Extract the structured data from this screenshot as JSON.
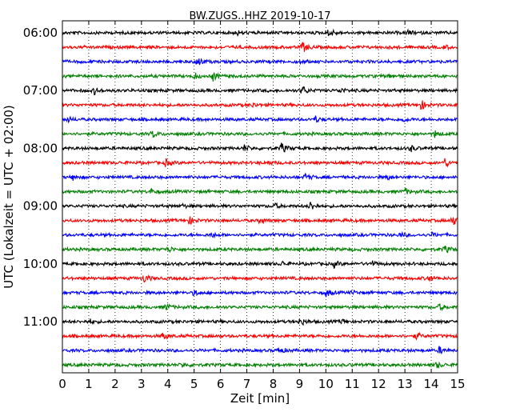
{
  "chart_data": {
    "type": "line",
    "title": "BW.ZUGS..HHZ 2019-10-17",
    "xlabel": "Zeit  [min]",
    "ylabel": "UTC (Lokalzeit = UTC + 02:00)",
    "xlim": [
      0,
      15
    ],
    "x_ticks": [
      0,
      1,
      2,
      3,
      4,
      5,
      6,
      7,
      8,
      9,
      10,
      11,
      12,
      13,
      14,
      15
    ],
    "y_ticks": [
      "06:00",
      "07:00",
      "08:00",
      "09:00",
      "10:00",
      "11:00"
    ],
    "grid": {
      "x": true,
      "y": false
    },
    "trace_colors": [
      "#000000",
      "#ff0000",
      "#0000ff",
      "#008000"
    ],
    "series": [
      {
        "start": "06:00",
        "events": [
          [
            6.6,
            0.4
          ],
          [
            10.1,
            0.9
          ],
          [
            13.1,
            0.4
          ]
        ]
      },
      {
        "start": "06:15",
        "events": [
          [
            9.1,
            1.0
          ],
          [
            14.5,
            0.3
          ]
        ]
      },
      {
        "start": "06:30",
        "events": [
          [
            5.1,
            0.9
          ],
          [
            9.0,
            0.3
          ]
        ]
      },
      {
        "start": "06:45",
        "events": [
          [
            5.0,
            0.5
          ],
          [
            5.7,
            0.8
          ],
          [
            12.4,
            0.4
          ]
        ]
      },
      {
        "start": "07:00",
        "events": [
          [
            1.2,
            0.6
          ],
          [
            9.1,
            0.8
          ],
          [
            10.5,
            0.5
          ]
        ]
      },
      {
        "start": "07:15",
        "events": [
          [
            13.6,
            0.9
          ],
          [
            7.2,
            0.3
          ]
        ]
      },
      {
        "start": "07:30",
        "events": [
          [
            0.2,
            0.5
          ],
          [
            9.6,
            0.5
          ],
          [
            12.9,
            0.4
          ]
        ]
      },
      {
        "start": "07:45",
        "events": [
          [
            3.4,
            0.6
          ],
          [
            14.1,
            0.6
          ]
        ]
      },
      {
        "start": "08:00",
        "events": [
          [
            6.9,
            0.5
          ],
          [
            8.3,
            0.9
          ],
          [
            13.2,
            0.5
          ]
        ]
      },
      {
        "start": "08:15",
        "events": [
          [
            3.9,
            0.6
          ],
          [
            14.5,
            0.8
          ],
          [
            7.8,
            0.3
          ]
        ]
      },
      {
        "start": "08:30",
        "events": [
          [
            0.4,
            0.4
          ],
          [
            9.2,
            0.6
          ],
          [
            12.3,
            0.4
          ]
        ]
      },
      {
        "start": "08:45",
        "events": [
          [
            3.3,
            0.5
          ],
          [
            13.0,
            0.5
          ]
        ]
      },
      {
        "start": "09:00",
        "events": [
          [
            8.0,
            0.5
          ],
          [
            9.4,
            0.8
          ],
          [
            4.5,
            0.3
          ]
        ]
      },
      {
        "start": "09:15",
        "events": [
          [
            4.8,
            0.7
          ],
          [
            7.5,
            0.4
          ],
          [
            14.8,
            0.9
          ]
        ]
      },
      {
        "start": "09:30",
        "events": [
          [
            5.6,
            0.5
          ],
          [
            12.8,
            0.4
          ],
          [
            14.0,
            0.3
          ]
        ]
      },
      {
        "start": "09:45",
        "events": [
          [
            4.0,
            0.5
          ],
          [
            14.5,
            0.6
          ]
        ]
      },
      {
        "start": "10:00",
        "events": [
          [
            8.3,
            0.4
          ],
          [
            10.3,
            0.5
          ],
          [
            11.7,
            0.6
          ]
        ]
      },
      {
        "start": "10:15",
        "events": [
          [
            3.1,
            0.7
          ],
          [
            13.9,
            0.5
          ]
        ]
      },
      {
        "start": "10:30",
        "events": [
          [
            5.0,
            0.5
          ],
          [
            10.0,
            0.6
          ],
          [
            11.0,
            0.3
          ]
        ]
      },
      {
        "start": "10:45",
        "events": [
          [
            3.9,
            0.6
          ],
          [
            14.3,
            0.5
          ]
        ]
      },
      {
        "start": "11:00",
        "events": [
          [
            1.0,
            0.4
          ],
          [
            9.0,
            0.8
          ],
          [
            10.6,
            0.4
          ]
        ]
      },
      {
        "start": "11:15",
        "events": [
          [
            3.8,
            0.6
          ],
          [
            13.4,
            0.6
          ]
        ]
      },
      {
        "start": "11:30",
        "events": [
          [
            8.2,
            0.6
          ],
          [
            14.3,
            0.6
          ]
        ]
      },
      {
        "start": "11:45",
        "events": [
          [
            4.5,
            0.4
          ],
          [
            14.2,
            0.5
          ]
        ]
      }
    ]
  }
}
